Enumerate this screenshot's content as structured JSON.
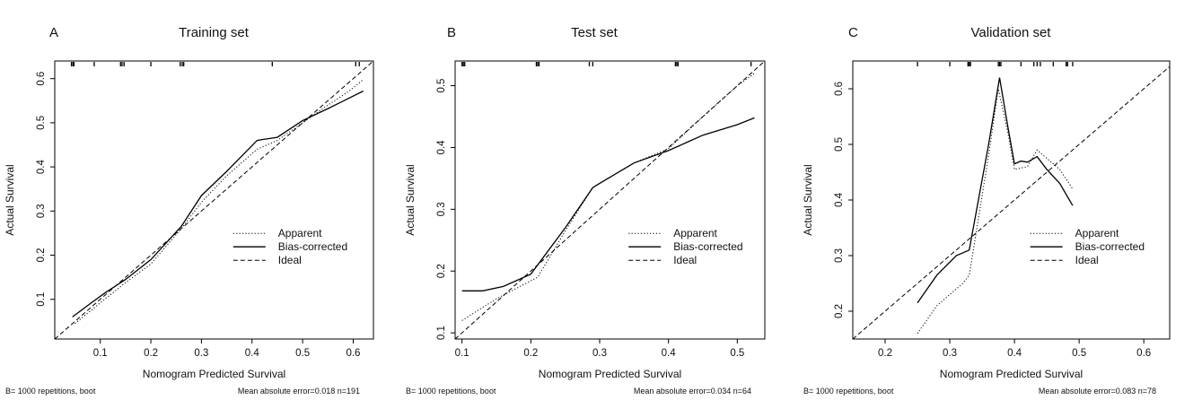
{
  "chart_data": [
    {
      "type": "line",
      "panel_label": "A",
      "title": "Training set",
      "xlabel": "Nomogram Predicted Survival",
      "ylabel": "Actual Survival",
      "xlim": [
        0.01,
        0.64
      ],
      "ylim": [
        0.01,
        0.64
      ],
      "xticks": [
        0.1,
        0.2,
        0.3,
        0.4,
        0.5,
        0.6
      ],
      "yticks": [
        0.1,
        0.2,
        0.3,
        0.4,
        0.5,
        0.6
      ],
      "footer_left": "B= 1000 repetitions, boot",
      "footer_right": "Mean absolute error=0.018 n=191",
      "legend": [
        "Apparent",
        "Bias-corrected",
        "Ideal"
      ],
      "rug": [
        0.043,
        0.046,
        0.048,
        0.088,
        0.14,
        0.143,
        0.147,
        0.2,
        0.258,
        0.262,
        0.265,
        0.44,
        0.605,
        0.612
      ],
      "series": [
        {
          "name": "Apparent",
          "style": "dotted",
          "x": [
            0.05,
            0.1,
            0.15,
            0.2,
            0.26,
            0.3,
            0.35,
            0.41,
            0.45,
            0.5,
            0.55,
            0.59,
            0.62
          ],
          "y": [
            0.045,
            0.092,
            0.138,
            0.18,
            0.26,
            0.32,
            0.38,
            0.44,
            0.46,
            0.5,
            0.54,
            0.57,
            0.598
          ]
        },
        {
          "name": "Bias-corrected",
          "style": "solid",
          "x": [
            0.045,
            0.08,
            0.11,
            0.15,
            0.2,
            0.26,
            0.3,
            0.35,
            0.41,
            0.42,
            0.45,
            0.5,
            0.55,
            0.62
          ],
          "y": [
            0.06,
            0.09,
            0.115,
            0.145,
            0.19,
            0.265,
            0.335,
            0.39,
            0.46,
            0.462,
            0.467,
            0.505,
            0.532,
            0.572
          ]
        },
        {
          "name": "Ideal",
          "style": "dashed",
          "x": [
            0.01,
            0.64
          ],
          "y": [
            0.01,
            0.64
          ]
        }
      ]
    },
    {
      "type": "line",
      "panel_label": "B",
      "title": "Test set",
      "xlabel": "Nomogram Predicted Survival",
      "ylabel": "Actual Survival",
      "xlim": [
        0.09,
        0.54
      ],
      "ylim": [
        0.09,
        0.54
      ],
      "xticks": [
        0.1,
        0.2,
        0.3,
        0.4,
        0.5
      ],
      "yticks": [
        0.1,
        0.2,
        0.3,
        0.4,
        0.5
      ],
      "footer_left": "B= 1000 repetitions, boot",
      "footer_right": "Mean absolute error=0.034 n=64",
      "legend": [
        "Apparent",
        "Bias-corrected",
        "Ideal"
      ],
      "rug": [
        0.1,
        0.102,
        0.104,
        0.208,
        0.21,
        0.212,
        0.285,
        0.29,
        0.41,
        0.412,
        0.414,
        0.52
      ],
      "series": [
        {
          "name": "Apparent",
          "style": "dotted",
          "x": [
            0.1,
            0.15,
            0.21,
            0.25,
            0.29,
            0.35,
            0.4,
            0.45,
            0.5,
            0.525
          ],
          "y": [
            0.12,
            0.155,
            0.19,
            0.265,
            0.335,
            0.375,
            0.398,
            0.45,
            0.5,
            0.52
          ]
        },
        {
          "name": "Bias-corrected",
          "style": "solid",
          "x": [
            0.1,
            0.13,
            0.16,
            0.2,
            0.25,
            0.29,
            0.3,
            0.35,
            0.4,
            0.45,
            0.5,
            0.525
          ],
          "y": [
            0.168,
            0.168,
            0.175,
            0.195,
            0.27,
            0.335,
            0.342,
            0.375,
            0.395,
            0.42,
            0.437,
            0.448
          ]
        },
        {
          "name": "Ideal",
          "style": "dashed",
          "x": [
            0.09,
            0.54
          ],
          "y": [
            0.09,
            0.54
          ]
        }
      ]
    },
    {
      "type": "line",
      "panel_label": "C",
      "title": "Validation set",
      "xlabel": "Nomogram Predicted Survival",
      "ylabel": "Actual Survival",
      "xlim": [
        0.15,
        0.64
      ],
      "ylim": [
        0.15,
        0.65
      ],
      "xticks": [
        0.2,
        0.3,
        0.4,
        0.5,
        0.6
      ],
      "yticks": [
        0.2,
        0.3,
        0.4,
        0.5,
        0.6
      ],
      "footer_left": "B= 1000 repetitions, boot",
      "footer_right": "Mean absolute error=0.083 n=78",
      "legend": [
        "Apparent",
        "Bias-corrected",
        "Ideal"
      ],
      "rug": [
        0.25,
        0.3,
        0.328,
        0.33,
        0.332,
        0.375,
        0.377,
        0.379,
        0.41,
        0.43,
        0.435,
        0.44,
        0.46,
        0.48,
        0.482,
        0.49
      ],
      "series": [
        {
          "name": "Apparent",
          "style": "dotted",
          "x": [
            0.25,
            0.28,
            0.32,
            0.33,
            0.36,
            0.375,
            0.39,
            0.4,
            0.42,
            0.435,
            0.45,
            0.47,
            0.49
          ],
          "y": [
            0.16,
            0.21,
            0.25,
            0.265,
            0.48,
            0.6,
            0.52,
            0.455,
            0.46,
            0.49,
            0.475,
            0.455,
            0.42
          ]
        },
        {
          "name": "Bias-corrected",
          "style": "solid",
          "x": [
            0.25,
            0.28,
            0.31,
            0.33,
            0.36,
            0.377,
            0.39,
            0.4,
            0.41,
            0.42,
            0.435,
            0.45,
            0.47,
            0.49
          ],
          "y": [
            0.215,
            0.265,
            0.3,
            0.31,
            0.5,
            0.62,
            0.53,
            0.465,
            0.47,
            0.468,
            0.478,
            0.455,
            0.43,
            0.39
          ]
        },
        {
          "name": "Ideal",
          "style": "dashed",
          "x": [
            0.15,
            0.64
          ],
          "y": [
            0.15,
            0.64
          ]
        }
      ]
    }
  ]
}
